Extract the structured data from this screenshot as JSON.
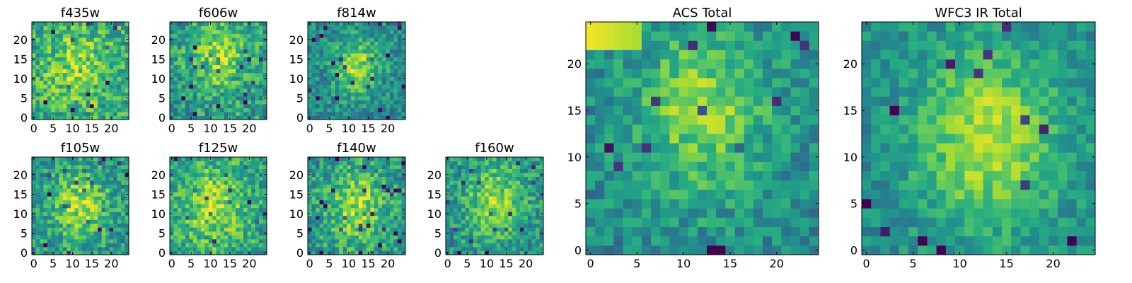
{
  "chart_data": [
    {
      "type": "heatmap",
      "title": "f435w",
      "grid": false,
      "colormap": "viridis",
      "xlim": [
        -0.5,
        24.5
      ],
      "ylim": [
        -0.5,
        24.5
      ],
      "x_ticks": [
        0,
        5,
        10,
        15,
        20
      ],
      "y_ticks": [
        0,
        5,
        10,
        15,
        20
      ],
      "rows": 25,
      "cols": 25,
      "seed": 11,
      "peak": {
        "x": 11,
        "y": 13
      },
      "noise": 0.38,
      "base": 0.6,
      "amp": 0.22,
      "sigma": 6
    },
    {
      "type": "heatmap",
      "title": "f606w",
      "grid": false,
      "colormap": "viridis",
      "xlim": [
        -0.5,
        24.5
      ],
      "ylim": [
        -0.5,
        24.5
      ],
      "x_ticks": [
        0,
        5,
        10,
        15,
        20
      ],
      "y_ticks": [
        0,
        5,
        10,
        15,
        20
      ],
      "rows": 25,
      "cols": 25,
      "seed": 23,
      "peak": {
        "x": 12,
        "y": 16
      },
      "noise": 0.36,
      "base": 0.55,
      "amp": 0.3,
      "sigma": 5
    },
    {
      "type": "heatmap",
      "title": "f814w",
      "grid": false,
      "colormap": "viridis",
      "xlim": [
        -0.5,
        24.5
      ],
      "ylim": [
        -0.5,
        24.5
      ],
      "x_ticks": [
        0,
        5,
        10,
        15,
        20
      ],
      "y_ticks": [
        0,
        5,
        10,
        15,
        20
      ],
      "rows": 25,
      "cols": 25,
      "seed": 37,
      "peak": {
        "x": 12,
        "y": 13
      },
      "noise": 0.3,
      "base": 0.48,
      "amp": 0.38,
      "sigma": 4
    },
    {
      "type": "heatmap",
      "title": "f105w",
      "grid": false,
      "colormap": "viridis",
      "xlim": [
        -0.5,
        24.5
      ],
      "ylim": [
        -0.5,
        24.5
      ],
      "x_ticks": [
        0,
        5,
        10,
        15,
        20
      ],
      "y_ticks": [
        0,
        5,
        10,
        15,
        20
      ],
      "rows": 25,
      "cols": 25,
      "seed": 41,
      "peak": {
        "x": 12,
        "y": 12
      },
      "noise": 0.34,
      "base": 0.52,
      "amp": 0.35,
      "sigma": 5
    },
    {
      "type": "heatmap",
      "title": "f125w",
      "grid": false,
      "colormap": "viridis",
      "xlim": [
        -0.5,
        24.5
      ],
      "ylim": [
        -0.5,
        24.5
      ],
      "x_ticks": [
        0,
        5,
        10,
        15,
        20
      ],
      "y_ticks": [
        0,
        5,
        10,
        15,
        20
      ],
      "rows": 25,
      "cols": 25,
      "seed": 53,
      "peak": {
        "x": 11,
        "y": 12
      },
      "noise": 0.34,
      "base": 0.56,
      "amp": 0.3,
      "sigma": 6
    },
    {
      "type": "heatmap",
      "title": "f140w",
      "grid": false,
      "colormap": "viridis",
      "xlim": [
        -0.5,
        24.5
      ],
      "ylim": [
        -0.5,
        24.5
      ],
      "x_ticks": [
        0,
        5,
        10,
        15,
        20
      ],
      "y_ticks": [
        0,
        5,
        10,
        15,
        20
      ],
      "rows": 25,
      "cols": 25,
      "seed": 67,
      "peak": {
        "x": 12,
        "y": 12
      },
      "noise": 0.34,
      "base": 0.54,
      "amp": 0.32,
      "sigma": 5
    },
    {
      "type": "heatmap",
      "title": "f160w",
      "grid": false,
      "colormap": "viridis",
      "xlim": [
        -0.5,
        24.5
      ],
      "ylim": [
        -0.5,
        24.5
      ],
      "x_ticks": [
        0,
        5,
        10,
        15,
        20
      ],
      "y_ticks": [
        0,
        5,
        10,
        15,
        20
      ],
      "rows": 25,
      "cols": 25,
      "seed": 79,
      "peak": {
        "x": 12,
        "y": 13
      },
      "noise": 0.32,
      "base": 0.52,
      "amp": 0.34,
      "sigma": 5
    },
    {
      "type": "heatmap",
      "title": "ACS Total",
      "grid": false,
      "colormap": "viridis",
      "xlim": [
        -0.5,
        24.5
      ],
      "ylim": [
        -0.5,
        24.5
      ],
      "x_ticks": [
        0,
        5,
        10,
        15,
        20
      ],
      "y_ticks": [
        0,
        5,
        10,
        15,
        20
      ],
      "rows": 25,
      "cols": 25,
      "seed": 97,
      "peak": {
        "x": 12,
        "y": 15
      },
      "noise": 0.26,
      "base": 0.48,
      "amp": 0.34,
      "sigma": 5,
      "corner_bright": true
    },
    {
      "type": "heatmap",
      "title": "WFC3 IR Total",
      "grid": false,
      "colormap": "viridis",
      "xlim": [
        -0.5,
        24.5
      ],
      "ylim": [
        -0.5,
        24.5
      ],
      "x_ticks": [
        0,
        5,
        10,
        15,
        20
      ],
      "y_ticks": [
        0,
        5,
        10,
        15,
        20
      ],
      "rows": 25,
      "cols": 25,
      "seed": 113,
      "peak": {
        "x": 13,
        "y": 12
      },
      "noise": 0.22,
      "base": 0.5,
      "amp": 0.4,
      "sigma": 5
    }
  ]
}
